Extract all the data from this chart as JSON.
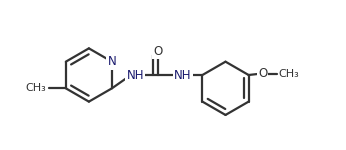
{
  "bg_color": "#ffffff",
  "line_color": "#333333",
  "text_color": "#1a1a6e",
  "line_width": 1.6,
  "font_size": 8.5,
  "xlim": [
    -5,
    105
  ],
  "ylim": [
    -5,
    48
  ]
}
